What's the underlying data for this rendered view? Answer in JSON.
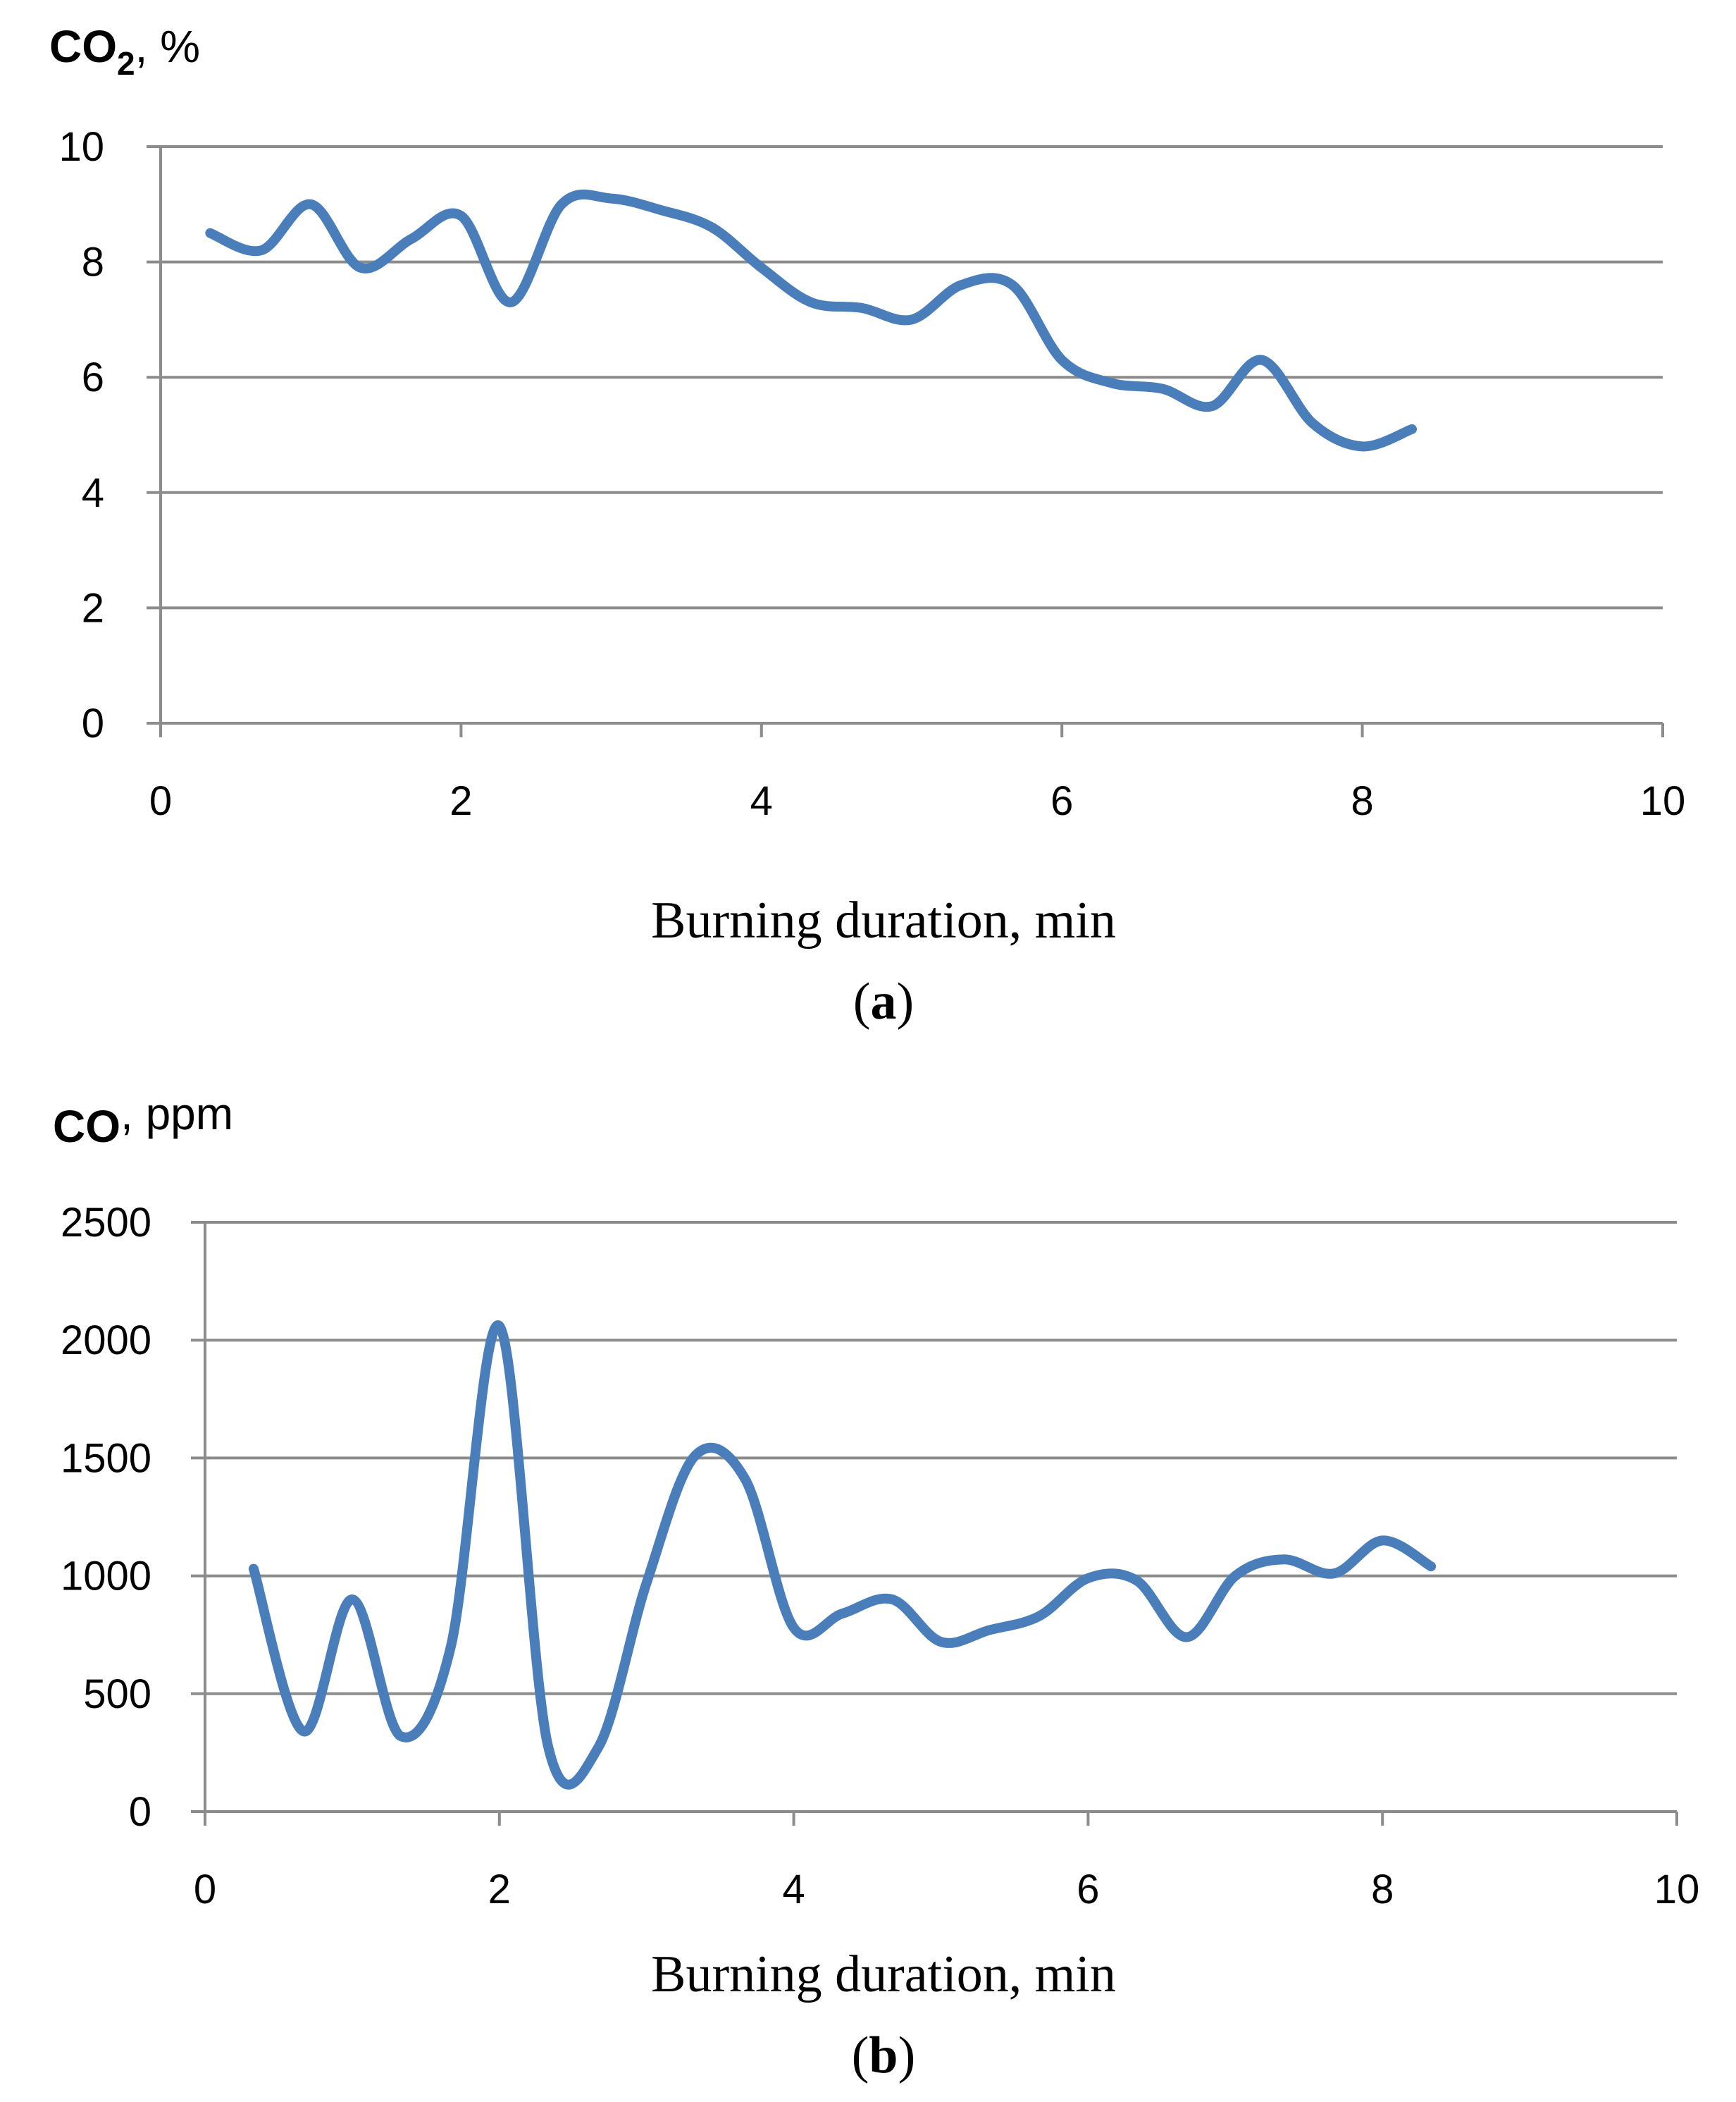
{
  "chart_data": [
    {
      "type": "line",
      "panel_label": "a",
      "ytitle_bold": "CO",
      "ytitle_sub": "2",
      "ytitle_rest": ", %",
      "xlabel": "Burning duration, min",
      "xlim": [
        0,
        10
      ],
      "ylim": [
        0,
        10
      ],
      "xticks": [
        0,
        2,
        4,
        6,
        8,
        10
      ],
      "yticks": [
        0,
        2,
        4,
        6,
        8,
        10
      ],
      "color": "#4a7ebb",
      "series": [
        {
          "name": "CO2",
          "x": [
            0.33,
            0.67,
            1.0,
            1.33,
            1.67,
            2.0,
            2.33,
            2.67,
            3.0,
            3.33,
            3.67,
            4.0,
            4.33,
            4.67,
            5.0,
            5.33,
            5.67,
            6.0,
            6.33,
            6.67,
            7.0,
            7.33,
            7.67,
            8.0,
            8.33
          ],
          "values": [
            8.5,
            8.2,
            9.0,
            7.9,
            8.4,
            8.8,
            7.3,
            9.0,
            9.1,
            8.9,
            8.6,
            7.9,
            7.3,
            7.2,
            7.0,
            7.6,
            7.6,
            6.3,
            5.9,
            5.8,
            5.5,
            6.3,
            5.2,
            4.8,
            5.1
          ]
        }
      ]
    },
    {
      "type": "line",
      "panel_label": "b",
      "ytitle_bold": "CO",
      "ytitle_sub": "",
      "ytitle_rest": ", ppm",
      "xlabel": "Burning duration, min",
      "xlim": [
        0,
        10
      ],
      "ylim": [
        0,
        2500
      ],
      "xticks": [
        0,
        2,
        4,
        6,
        8,
        10
      ],
      "yticks": [
        0,
        500,
        1000,
        1500,
        2000,
        2500
      ],
      "color": "#4a7ebb",
      "series": [
        {
          "name": "CO",
          "x": [
            0.33,
            0.67,
            1.0,
            1.33,
            1.67,
            2.0,
            2.33,
            2.67,
            3.0,
            3.33,
            3.67,
            4.0,
            4.33,
            4.67,
            5.0,
            5.33,
            5.67,
            6.0,
            6.33,
            6.67,
            7.0,
            7.33,
            7.67,
            8.0,
            8.33
          ],
          "values": [
            1030,
            340,
            900,
            320,
            700,
            2060,
            280,
            270,
            970,
            1510,
            1410,
            780,
            840,
            900,
            720,
            770,
            830,
            990,
            980,
            740,
            1000,
            1070,
            1010,
            1150,
            1040
          ]
        }
      ]
    }
  ]
}
